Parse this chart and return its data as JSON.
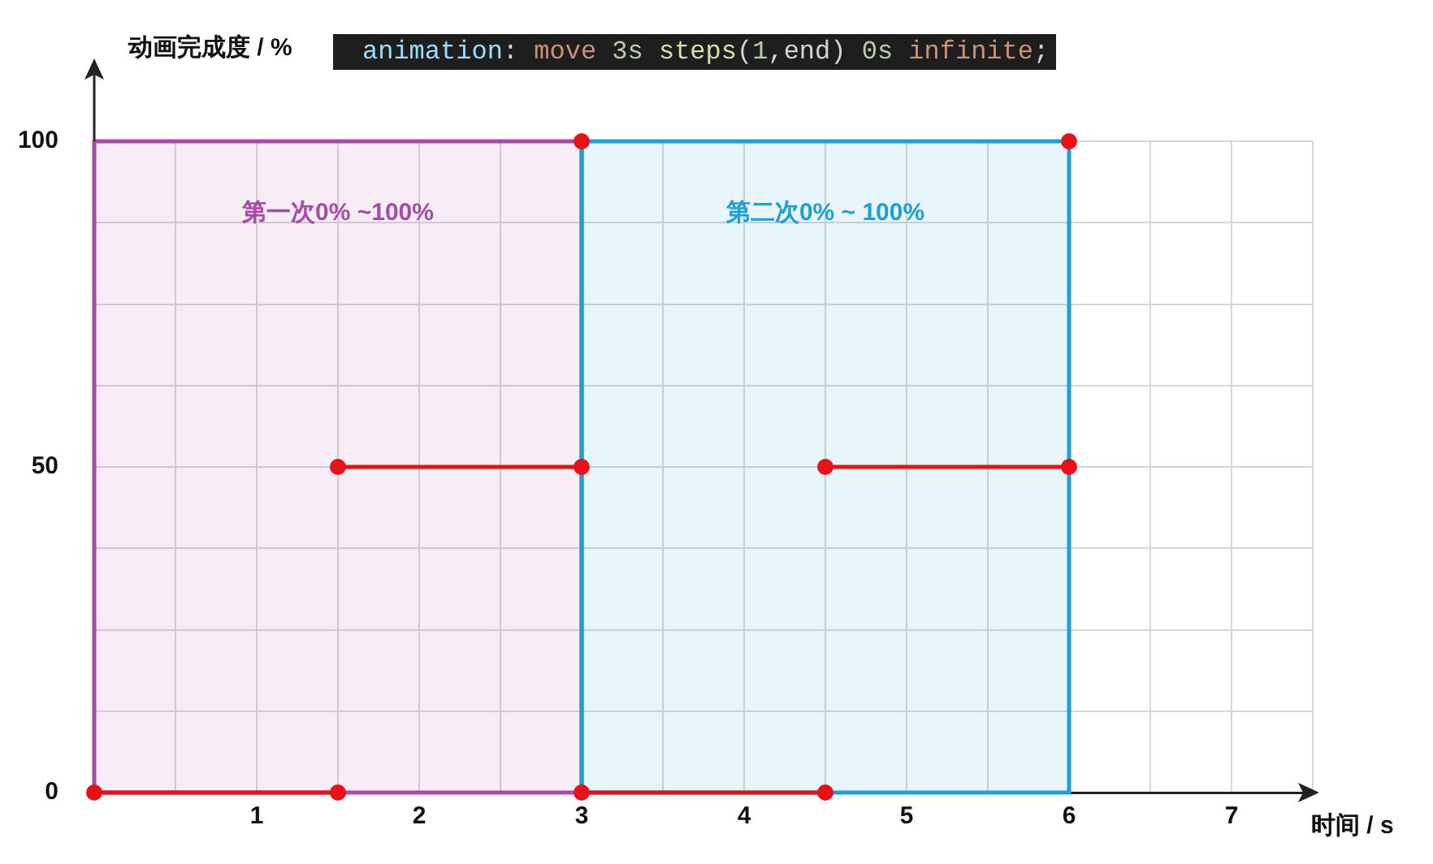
{
  "chart_data": {
    "type": "line",
    "annotations": [
      "animation: move 3s steps(1,end) 0s infinite;"
    ],
    "xlabel": "时间 / s",
    "ylabel": "动画完成度 / %",
    "xlim": [
      0,
      7.5
    ],
    "ylim": [
      0,
      100
    ],
    "xticks": [
      {
        "value": 0.5,
        "label": null
      },
      1,
      {
        "value": 1.5,
        "label": null
      },
      2,
      {
        "value": 2.5,
        "label": null
      },
      3,
      {
        "value": 3.5,
        "label": null
      },
      4,
      {
        "value": 4.5,
        "label": null
      },
      5,
      {
        "value": 5.5,
        "label": null
      },
      6,
      {
        "value": 6.5,
        "label": null
      },
      7,
      {
        "value": 7.5,
        "label": null
      }
    ],
    "yticks": [
      0,
      {
        "value": 12.5,
        "label": null
      },
      {
        "value": 25,
        "label": null
      },
      {
        "value": 37.5,
        "label": null
      },
      50,
      {
        "value": 62.5,
        "label": null
      },
      {
        "value": 75,
        "label": null
      },
      {
        "value": 87.5,
        "label": null
      },
      100
    ],
    "grid": true,
    "legend": false,
    "marker": "circle",
    "bands": [
      {
        "axis": "x",
        "from": 0,
        "to": 3,
        "label": "第一次0% ~100%",
        "color": "#a64ca6"
      },
      {
        "axis": "x",
        "from": 3,
        "to": 6,
        "label": "第二次0% ~ 100%",
        "color": "#1e9fd5"
      }
    ],
    "series": [
      {
        "color": "#e6121a",
        "x": [
          0,
          1.5
        ],
        "values": [
          0,
          0
        ]
      },
      {
        "color": "#e6121a",
        "x": [
          1.5,
          3
        ],
        "values": [
          50,
          50
        ]
      },
      {
        "color": "#e6121a",
        "x": [
          3,
          4.5
        ],
        "values": [
          0,
          0
        ]
      },
      {
        "color": "#e6121a",
        "x": [
          4.5,
          6
        ],
        "values": [
          50,
          50
        ]
      },
      {
        "type": "scatter",
        "color": "#e6121a",
        "x": [
          3,
          6
        ],
        "values": [
          100,
          100
        ]
      }
    ]
  }
}
